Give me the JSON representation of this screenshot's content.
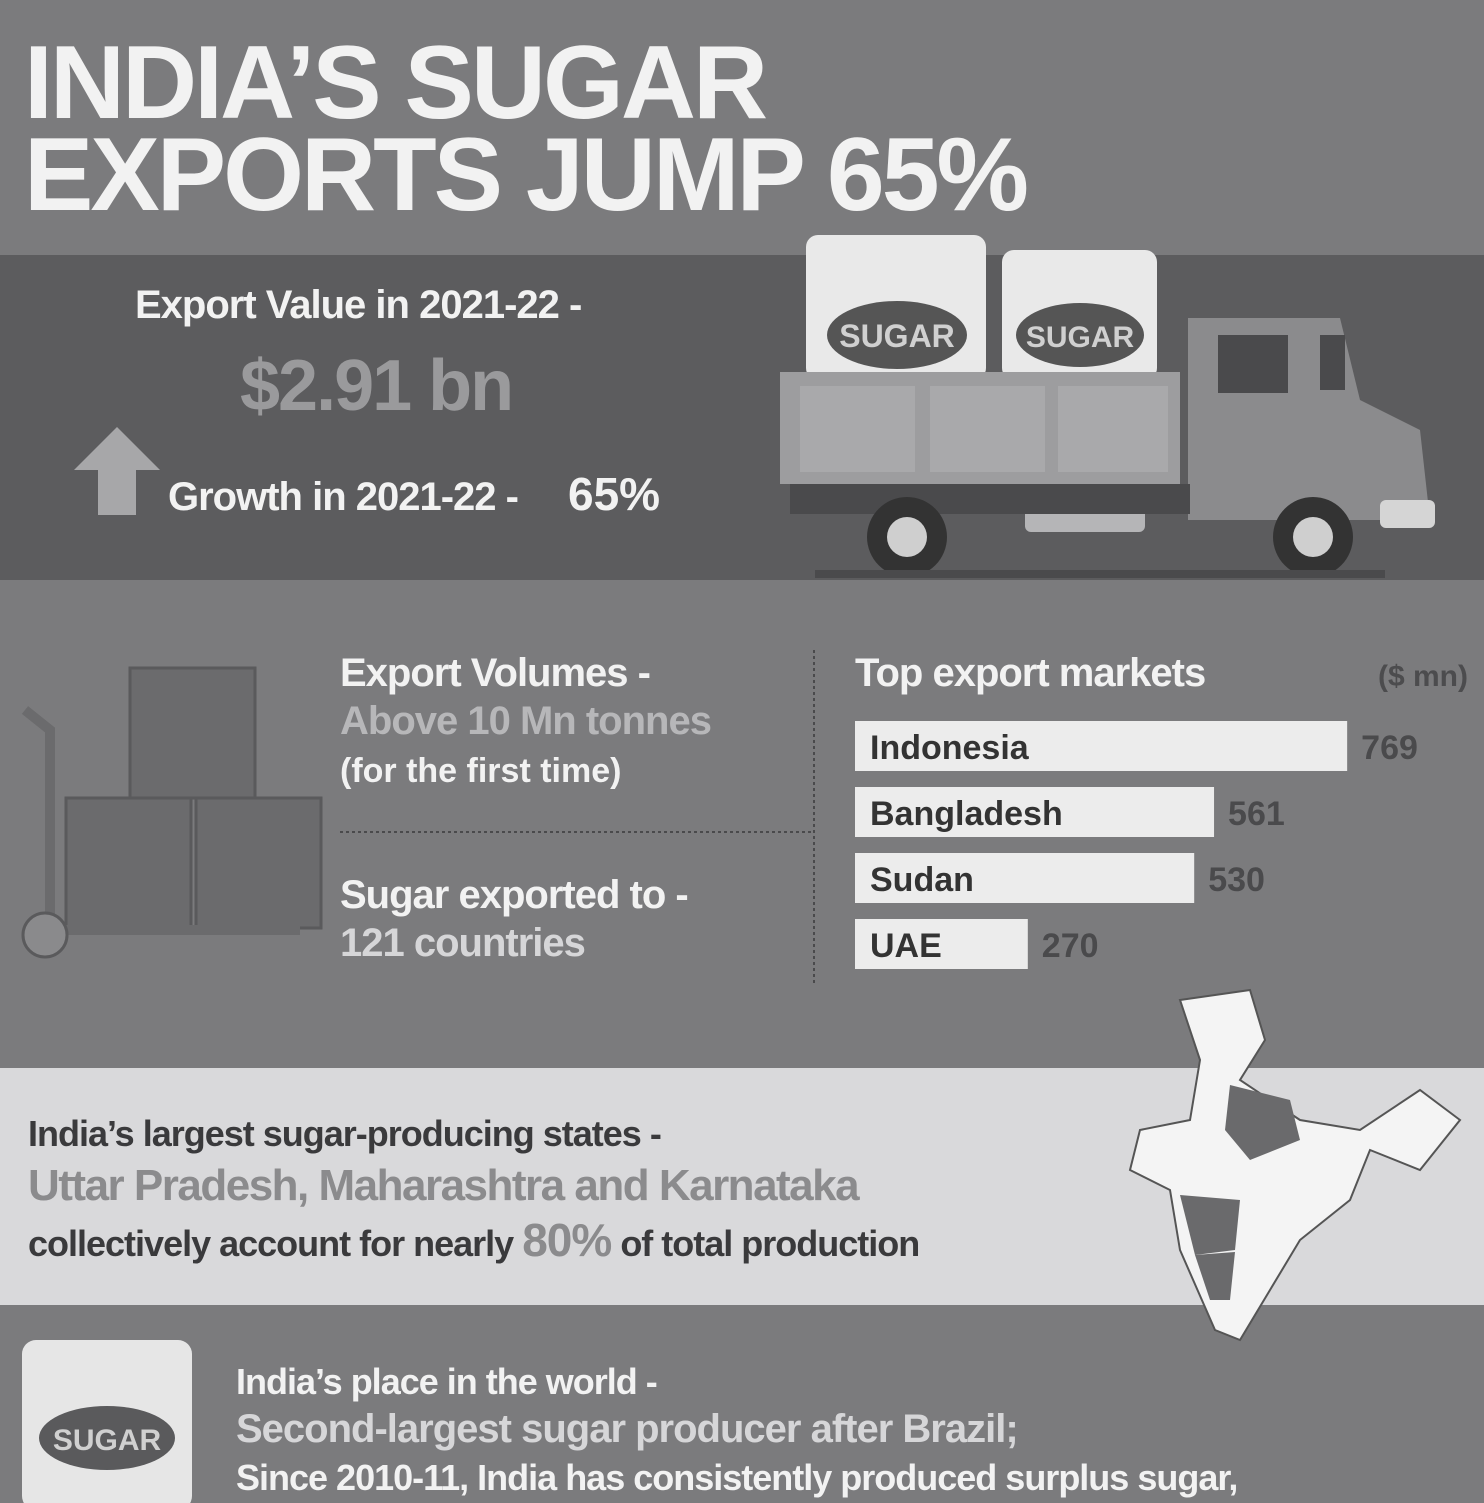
{
  "title": [
    "INDIA’S SUGAR",
    "EXPORTS JUMP 65%"
  ],
  "export_value": {
    "label": "Export Value in 2021-22 -",
    "value": "$2.91 bn"
  },
  "growth": {
    "label": "Growth in 2021-22 -",
    "value": "65%"
  },
  "truck_bags": [
    "SUGAR",
    "SUGAR"
  ],
  "volumes": {
    "label": "Export Volumes -",
    "value": "Above 10 Mn tonnes",
    "note": "(for the first time)"
  },
  "countries": {
    "label": "Sugar exported to -",
    "value": "121 countries"
  },
  "chart_data": {
    "type": "bar",
    "orientation": "horizontal",
    "title": "Top export markets",
    "unit": "($ mn)",
    "categories": [
      "Indonesia",
      "Bangladesh",
      "Sudan",
      "UAE"
    ],
    "values": [
      769,
      561,
      530,
      270
    ],
    "color": "#ececec"
  },
  "states": {
    "label": "India’s largest sugar-producing states -",
    "names": "Uttar Pradesh, Maharashtra and Karnataka",
    "text_before": "collectively account for nearly",
    "share": "80%",
    "text_after": "of total production"
  },
  "world": {
    "bag": "SUGAR",
    "label": "India’s place in the world -",
    "value": "Second-largest sugar producer after Brazil;",
    "text": "Since 2010-11, India has consistently produced surplus sugar,"
  }
}
